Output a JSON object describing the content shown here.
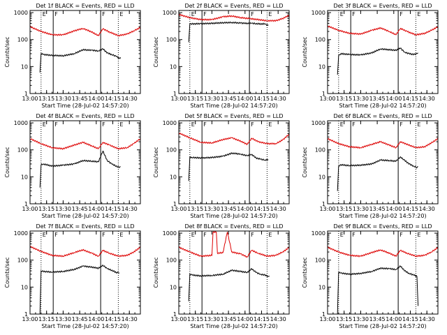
{
  "figure": {
    "type": "multi-panel line plot",
    "xlabel": "Start Time (28-Jul-02 14:57:20)",
    "ylabel": "Counts/sec"
  },
  "colors": {
    "events": "#000000",
    "lld": "#dd0000",
    "background": "#ffffff"
  },
  "shared": {
    "xticks": [
      "13:00",
      "13:15",
      "13:30",
      "13:45",
      "14:00",
      "14:15",
      "14:30"
    ],
    "yticks": [
      "1",
      "10",
      "100",
      "1000"
    ],
    "ylim": [
      1,
      1200
    ],
    "xlim_min": [
      0,
      100
    ],
    "vline_solid": [
      {
        "t": 21,
        "label": "F"
      },
      {
        "t": 64,
        "label": "F"
      }
    ],
    "vline_dotted": [
      {
        "t": 10,
        "label": "E"
      },
      {
        "t": 80,
        "label": "E"
      }
    ]
  },
  "chart_data": [
    {
      "type": "line",
      "title": "Det 1f BLACK = Events, RED = LLD",
      "xlabel": "Start Time (28-Jul-02 14:57:20)",
      "ylabel": "Counts/sec",
      "series": [
        {
          "name": "LLD",
          "color": "#dd0000",
          "x": [
            0,
            10,
            20,
            30,
            40,
            48,
            56,
            62,
            66,
            72,
            80,
            88,
            94,
            100
          ],
          "values": [
            300,
            200,
            150,
            150,
            210,
            260,
            190,
            140,
            250,
            190,
            140,
            160,
            210,
            280
          ]
        },
        {
          "name": "Events",
          "color": "#000000",
          "x": [
            9,
            10,
            12,
            20,
            30,
            40,
            48,
            56,
            62,
            66,
            70,
            74,
            78,
            81,
            82
          ],
          "values": [
            6,
            30,
            28,
            26,
            25,
            30,
            42,
            40,
            38,
            45,
            32,
            28,
            24,
            20,
            22
          ]
        }
      ]
    },
    {
      "type": "line",
      "title": "Det 2f BLACK = Events, RED = LLD",
      "xlabel": "Start Time (28-Jul-02 14:57:20)",
      "ylabel": "Counts/sec",
      "series": [
        {
          "name": "LLD",
          "color": "#dd0000",
          "x": [
            0,
            10,
            20,
            30,
            40,
            48,
            56,
            64,
            72,
            80,
            88,
            94,
            100
          ],
          "values": [
            850,
            650,
            550,
            550,
            700,
            750,
            650,
            600,
            550,
            500,
            500,
            600,
            800
          ]
        },
        {
          "name": "Events",
          "color": "#000000",
          "x": [
            9,
            10,
            12,
            20,
            30,
            40,
            48,
            56,
            62,
            66,
            70,
            74,
            78,
            81
          ],
          "values": [
            80,
            380,
            380,
            390,
            400,
            420,
            430,
            410,
            400,
            400,
            390,
            380,
            380,
            330
          ]
        }
      ]
    },
    {
      "type": "line",
      "title": "Det 3f BLACK = Events, RED = LLD",
      "xlabel": "Start Time (28-Jul-02 14:57:20)",
      "ylabel": "Counts/sec",
      "series": [
        {
          "name": "LLD",
          "color": "#dd0000",
          "x": [
            0,
            10,
            20,
            30,
            40,
            48,
            56,
            62,
            66,
            72,
            80,
            88,
            94,
            100
          ],
          "values": [
            320,
            220,
            170,
            160,
            220,
            270,
            200,
            150,
            260,
            200,
            150,
            170,
            220,
            300
          ]
        },
        {
          "name": "Events",
          "color": "#000000",
          "x": [
            9,
            10,
            12,
            20,
            30,
            40,
            48,
            56,
            62,
            66,
            70,
            74,
            78,
            81,
            82
          ],
          "values": [
            5,
            25,
            30,
            28,
            27,
            32,
            45,
            42,
            40,
            48,
            34,
            30,
            28,
            30,
            32
          ]
        }
      ]
    },
    {
      "type": "line",
      "title": "Det 4f BLACK = Events, RED = LLD",
      "xlabel": "Start Time (28-Jul-02 14:57:20)",
      "ylabel": "Counts/sec",
      "series": [
        {
          "name": "LLD",
          "color": "#dd0000",
          "x": [
            0,
            10,
            20,
            30,
            40,
            48,
            56,
            62,
            66,
            72,
            80,
            88,
            94,
            100
          ],
          "values": [
            260,
            170,
            120,
            110,
            150,
            190,
            140,
            110,
            190,
            150,
            110,
            120,
            170,
            260
          ]
        },
        {
          "name": "Events",
          "color": "#000000",
          "x": [
            9,
            10,
            12,
            20,
            30,
            40,
            48,
            56,
            62,
            66,
            70,
            74,
            78,
            81,
            82
          ],
          "values": [
            4,
            28,
            30,
            25,
            27,
            30,
            40,
            38,
            36,
            90,
            40,
            30,
            25,
            22,
            24
          ]
        }
      ]
    },
    {
      "type": "line",
      "title": "Det 5f BLACK = Events, RED = LLD",
      "xlabel": "Start Time (28-Jul-02 14:57:20)",
      "ylabel": "Counts/sec",
      "series": [
        {
          "name": "LLD",
          "color": "#dd0000",
          "x": [
            0,
            10,
            20,
            30,
            40,
            48,
            56,
            62,
            66,
            72,
            80,
            88,
            94,
            100
          ],
          "values": [
            420,
            280,
            190,
            180,
            240,
            280,
            210,
            160,
            270,
            200,
            170,
            170,
            230,
            380
          ]
        },
        {
          "name": "Events",
          "color": "#000000",
          "x": [
            9,
            10,
            12,
            20,
            30,
            40,
            48,
            56,
            62,
            66,
            70,
            74,
            78,
            81
          ],
          "values": [
            7,
            55,
            52,
            50,
            52,
            58,
            75,
            70,
            60,
            68,
            50,
            45,
            42,
            44
          ]
        }
      ]
    },
    {
      "type": "line",
      "title": "Det 6f BLACK = Events, RED = LLD",
      "xlabel": "Start Time (28-Jul-02 14:57:20)",
      "ylabel": "Counts/sec",
      "series": [
        {
          "name": "LLD",
          "color": "#dd0000",
          "x": [
            0,
            10,
            20,
            30,
            40,
            48,
            56,
            62,
            66,
            72,
            80,
            88,
            94,
            100
          ],
          "values": [
            260,
            170,
            130,
            120,
            160,
            200,
            150,
            120,
            200,
            160,
            120,
            130,
            180,
            260
          ]
        },
        {
          "name": "Events",
          "color": "#000000",
          "x": [
            9,
            10,
            12,
            20,
            30,
            40,
            48,
            56,
            62,
            66,
            70,
            74,
            78,
            81,
            82
          ],
          "values": [
            3,
            25,
            28,
            26,
            27,
            30,
            42,
            40,
            38,
            55,
            40,
            30,
            25,
            22,
            24
          ]
        }
      ]
    },
    {
      "type": "line",
      "title": "Det 7f BLACK = Events, RED = LLD",
      "xlabel": "Start Time (28-Jul-02 14:57:20)",
      "ylabel": "Counts/sec",
      "series": [
        {
          "name": "LLD",
          "color": "#dd0000",
          "x": [
            0,
            10,
            20,
            30,
            40,
            48,
            56,
            62,
            66,
            72,
            80,
            88,
            94,
            100
          ],
          "values": [
            320,
            210,
            150,
            140,
            190,
            240,
            180,
            140,
            230,
            180,
            140,
            150,
            200,
            300
          ]
        },
        {
          "name": "Events",
          "color": "#000000",
          "x": [
            9,
            10,
            12,
            20,
            30,
            40,
            48,
            56,
            62,
            66,
            70,
            74,
            78,
            81
          ],
          "values": [
            1,
            40,
            38,
            36,
            38,
            45,
            60,
            55,
            50,
            65,
            48,
            42,
            35,
            34
          ]
        }
      ]
    },
    {
      "type": "line",
      "title": "Det 8f BLACK = Events, RED = LLD",
      "xlabel": "Start Time (28-Jul-02 14:57:20)",
      "ylabel": "Counts/sec",
      "series": [
        {
          "name": "LLD",
          "color": "#dd0000",
          "x": [
            0,
            10,
            20,
            30,
            31,
            34,
            35,
            40,
            44,
            48,
            56,
            62,
            66,
            72,
            80,
            88,
            94,
            100
          ],
          "values": [
            300,
            200,
            140,
            150,
            1100,
            1100,
            180,
            190,
            1100,
            200,
            170,
            130,
            230,
            180,
            140,
            150,
            200,
            290
          ]
        },
        {
          "name": "Events",
          "color": "#000000",
          "x": [
            9,
            10,
            12,
            20,
            30,
            40,
            48,
            56,
            62,
            66,
            70,
            74,
            78,
            81,
            82
          ],
          "values": [
            3,
            30,
            28,
            26,
            27,
            30,
            42,
            38,
            35,
            48,
            35,
            30,
            28,
            25,
            26
          ]
        }
      ]
    },
    {
      "type": "line",
      "title": "Det 9f BLACK = Events, RED = LLD",
      "xlabel": "Start Time (28-Jul-02 14:57:20)",
      "ylabel": "Counts/sec",
      "series": [
        {
          "name": "LLD",
          "color": "#dd0000",
          "x": [
            0,
            10,
            20,
            30,
            40,
            48,
            56,
            62,
            66,
            72,
            80,
            88,
            94,
            100
          ],
          "values": [
            300,
            200,
            150,
            140,
            190,
            240,
            180,
            140,
            230,
            180,
            140,
            150,
            200,
            290
          ]
        },
        {
          "name": "Events",
          "color": "#000000",
          "x": [
            9,
            10,
            12,
            20,
            30,
            40,
            48,
            56,
            62,
            66,
            70,
            74,
            78,
            81,
            82
          ],
          "values": [
            1,
            35,
            33,
            30,
            32,
            38,
            50,
            48,
            45,
            60,
            40,
            32,
            28,
            25,
            2
          ]
        }
      ]
    }
  ]
}
